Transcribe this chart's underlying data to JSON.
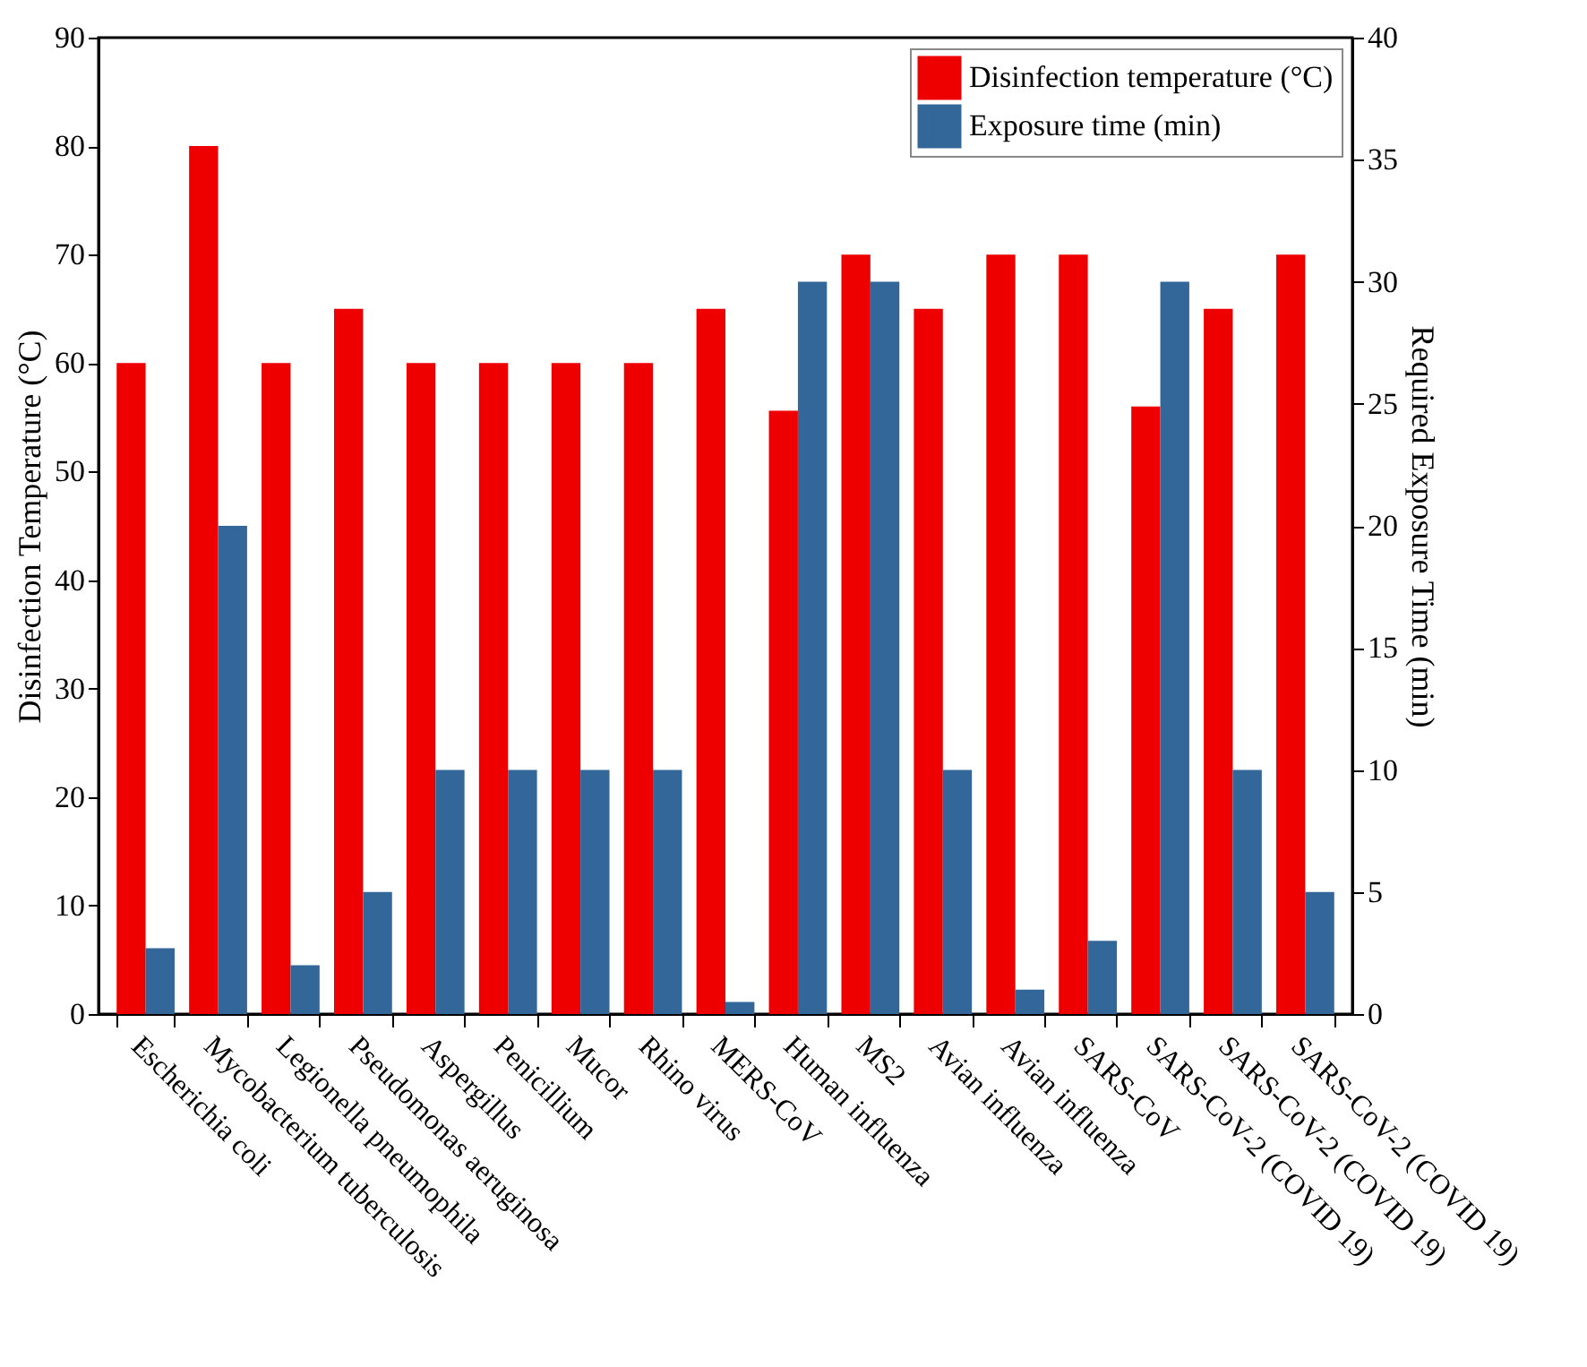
{
  "chart_data": {
    "type": "bar",
    "categories": [
      "Escherichia coli",
      "Mycobacterium tuberculosis",
      "Legionella pneumophila",
      "Pseudomonas aeruginosa",
      "Aspergillus",
      "Penicillium",
      "Mucor",
      "Rhino virus",
      "MERS-CoV",
      "Human influenza",
      "MS2",
      "Avian influenza",
      "Avian influenza",
      "SARS-CoV",
      "SARS-CoV-2 (COVID 19)",
      "SARS-CoV-2 (COVID 19)",
      "SARS-CoV-2 (COVID 19)"
    ],
    "series": [
      {
        "name": "Disinfection temperature (°C)",
        "color": "#ee0000",
        "values": [
          60,
          80,
          60,
          65,
          60,
          60,
          60,
          60,
          65,
          55.6,
          70,
          65,
          70,
          70,
          56,
          65,
          70
        ]
      },
      {
        "name": "Exposure time (min)",
        "color": "#336699",
        "axis": "y2",
        "values": [
          2.7,
          20,
          2,
          5,
          10,
          10,
          10,
          10,
          0.5,
          30,
          30,
          10,
          1,
          3,
          30,
          10,
          5
        ]
      }
    ],
    "ylabel": "Disinfection Temperature  (°C)",
    "y2label": "Required Exposure Time (min)",
    "ylim": [
      0,
      90
    ],
    "yticks": [
      0,
      10,
      20,
      30,
      40,
      50,
      60,
      70,
      80,
      90
    ],
    "y2lim": [
      0,
      40
    ],
    "y2ticks": [
      0,
      5,
      10,
      15,
      20,
      25,
      30,
      35,
      40
    ],
    "legend": "top right"
  }
}
